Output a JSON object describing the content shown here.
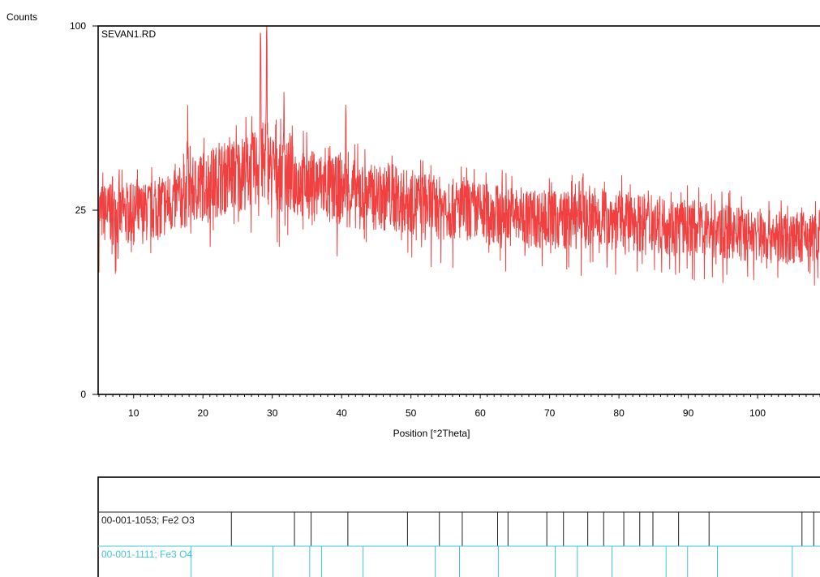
{
  "chart_data": {
    "type": "line",
    "ylabel": "Counts",
    "xlabel": "Position [°2Theta]",
    "sample_label": "SEVAN1.RD",
    "xlim": [
      5,
      109
    ],
    "ylim": [
      0,
      100
    ],
    "y_scale": "sqrt",
    "grid": false,
    "x_ticks": [
      10,
      20,
      30,
      40,
      50,
      60,
      70,
      80,
      90,
      100
    ],
    "y_ticks": [
      0,
      25,
      100
    ],
    "line_color": "#f04040",
    "envelope": {
      "x": [
        5,
        8,
        12,
        16,
        20,
        24,
        27,
        29,
        31,
        34,
        38,
        42,
        46,
        50,
        55,
        60,
        65,
        70,
        75,
        80,
        85,
        90,
        95,
        100,
        104,
        109
      ],
      "y": [
        25,
        24,
        25,
        28,
        33,
        36,
        38,
        40,
        36,
        34,
        32,
        30,
        29,
        28,
        26,
        25,
        24,
        23,
        23,
        23,
        22,
        21,
        20,
        19,
        18.5,
        18.5
      ]
    },
    "peaks": [
      {
        "x": 17.8,
        "y": 52
      },
      {
        "x": 28.3,
        "y": 100
      },
      {
        "x": 29.2,
        "y": 98
      },
      {
        "x": 31.7,
        "y": 70
      },
      {
        "x": 40.6,
        "y": 55
      },
      {
        "x": 74.8,
        "y": 38
      }
    ],
    "reference_patterns": [
      {
        "name": "00-001-1053; Fe2 O3",
        "color": "#202020",
        "positions": [
          24.1,
          33.2,
          35.6,
          40.9,
          49.5,
          54.1,
          57.4,
          62.5,
          64.0,
          69.6,
          72.0,
          75.5,
          77.8,
          80.7,
          83.0,
          84.9,
          88.6,
          93.0,
          106.4,
          108.1
        ]
      },
      {
        "name": "00-001-1111; Fe3 O4",
        "color": "#40c8d8",
        "positions": [
          18.3,
          30.1,
          35.4,
          37.1,
          43.1,
          53.5,
          57.0,
          62.6,
          70.8,
          74.0,
          79.0,
          86.8,
          89.9,
          94.2,
          105.0
        ]
      }
    ]
  }
}
